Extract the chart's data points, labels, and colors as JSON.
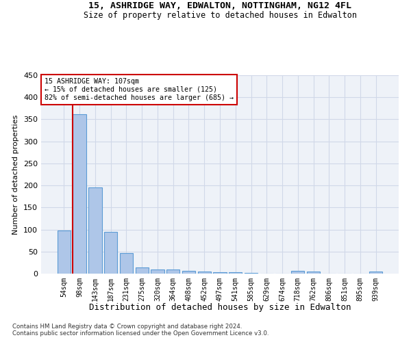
{
  "title_line1": "15, ASHRIDGE WAY, EDWALTON, NOTTINGHAM, NG12 4FL",
  "title_line2": "Size of property relative to detached houses in Edwalton",
  "xlabel": "Distribution of detached houses by size in Edwalton",
  "ylabel": "Number of detached properties",
  "categories": [
    "54sqm",
    "98sqm",
    "143sqm",
    "187sqm",
    "231sqm",
    "275sqm",
    "320sqm",
    "364sqm",
    "408sqm",
    "452sqm",
    "497sqm",
    "541sqm",
    "585sqm",
    "629sqm",
    "674sqm",
    "718sqm",
    "762sqm",
    "806sqm",
    "851sqm",
    "895sqm",
    "939sqm"
  ],
  "values": [
    97,
    362,
    195,
    95,
    46,
    14,
    10,
    10,
    6,
    5,
    3,
    3,
    1,
    0,
    0,
    6,
    5,
    0,
    0,
    0,
    4
  ],
  "bar_color": "#aec6e8",
  "bar_edge_color": "#5b9bd5",
  "annotation_title": "15 ASHRIDGE WAY: 107sqm",
  "annotation_line1": "← 15% of detached houses are smaller (125)",
  "annotation_line2": "82% of semi-detached houses are larger (685) →",
  "annotation_box_color": "#ffffff",
  "annotation_box_edge_color": "#cc0000",
  "red_line_color": "#cc0000",
  "grid_color": "#d0d8e8",
  "background_color": "#eef2f8",
  "footnote1": "Contains HM Land Registry data © Crown copyright and database right 2024.",
  "footnote2": "Contains public sector information licensed under the Open Government Licence v3.0.",
  "ylim": [
    0,
    450
  ],
  "yticks": [
    0,
    50,
    100,
    150,
    200,
    250,
    300,
    350,
    400,
    450
  ],
  "fig_width": 6.0,
  "fig_height": 5.0,
  "dpi": 100
}
